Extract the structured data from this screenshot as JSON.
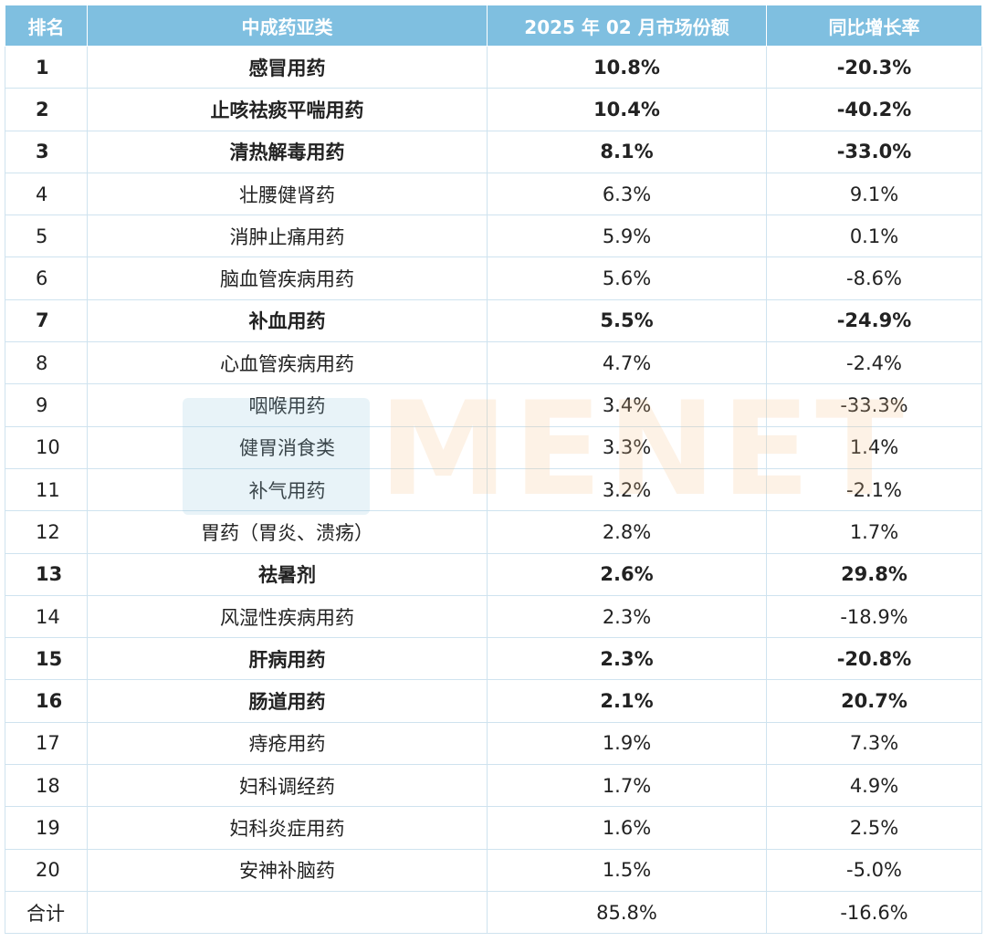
{
  "chart_data": {
    "type": "table",
    "headers": [
      "排名",
      "中成药亚类",
      "2025 年 02 月市场份额",
      "同比增长率"
    ],
    "rows": [
      {
        "rank": "1",
        "name": "感冒用药",
        "share": "10.8%",
        "growth": "-20.3%",
        "highlight": "blue"
      },
      {
        "rank": "2",
        "name": "止咳祛痰平喘用药",
        "share": "10.4%",
        "growth": "-40.2%",
        "highlight": "blue"
      },
      {
        "rank": "3",
        "name": "清热解毒用药",
        "share": "8.1%",
        "growth": "-33.0%",
        "highlight": "blue"
      },
      {
        "rank": "4",
        "name": "壮腰健肾药",
        "share": "6.3%",
        "growth": "9.1%",
        "highlight": "none"
      },
      {
        "rank": "5",
        "name": "消肿止痛用药",
        "share": "5.9%",
        "growth": "0.1%",
        "highlight": "none"
      },
      {
        "rank": "6",
        "name": "脑血管疾病用药",
        "share": "5.6%",
        "growth": "-8.6%",
        "highlight": "none"
      },
      {
        "rank": "7",
        "name": "补血用药",
        "share": "5.5%",
        "growth": "-24.9%",
        "highlight": "blue"
      },
      {
        "rank": "8",
        "name": "心血管疾病用药",
        "share": "4.7%",
        "growth": "-2.4%",
        "highlight": "none"
      },
      {
        "rank": "9",
        "name": "咽喉用药",
        "share": "3.4%",
        "growth": "-33.3%",
        "highlight": "blue-light"
      },
      {
        "rank": "10",
        "name": "健胃消食类",
        "share": "3.3%",
        "growth": "1.4%",
        "highlight": "none"
      },
      {
        "rank": "11",
        "name": "补气用药",
        "share": "3.2%",
        "growth": "-2.1%",
        "highlight": "none"
      },
      {
        "rank": "12",
        "name": "胃药（胃炎、溃疡）",
        "share": "2.8%",
        "growth": "1.7%",
        "highlight": "none"
      },
      {
        "rank": "13",
        "name": "祛暑剂",
        "share": "2.6%",
        "growth": "29.8%",
        "highlight": "red"
      },
      {
        "rank": "14",
        "name": "风湿性疾病用药",
        "share": "2.3%",
        "growth": "-18.9%",
        "highlight": "none"
      },
      {
        "rank": "15",
        "name": "肝病用药",
        "share": "2.3%",
        "growth": "-20.8%",
        "highlight": "blue"
      },
      {
        "rank": "16",
        "name": "肠道用药",
        "share": "2.1%",
        "growth": "20.7%",
        "highlight": "red"
      },
      {
        "rank": "17",
        "name": "痔疮用药",
        "share": "1.9%",
        "growth": "7.3%",
        "highlight": "none"
      },
      {
        "rank": "18",
        "name": "妇科调经药",
        "share": "1.7%",
        "growth": "4.9%",
        "highlight": "none"
      },
      {
        "rank": "19",
        "name": "妇科炎症用药",
        "share": "1.6%",
        "growth": "2.5%",
        "highlight": "none"
      },
      {
        "rank": "20",
        "name": "安神补脑药",
        "share": "1.5%",
        "growth": "-5.0%",
        "highlight": "none"
      }
    ],
    "total": {
      "rank": "合计",
      "name": "",
      "share": "85.8%",
      "growth": "-16.6%"
    }
  },
  "watermark": {
    "text": "MENET"
  },
  "colors": {
    "header_bg": "#7fbfe0",
    "header_text": "#ffffff",
    "highlight_blue": "#14a6de",
    "highlight_red": "#ff0000",
    "border": "#cfe3ef"
  }
}
